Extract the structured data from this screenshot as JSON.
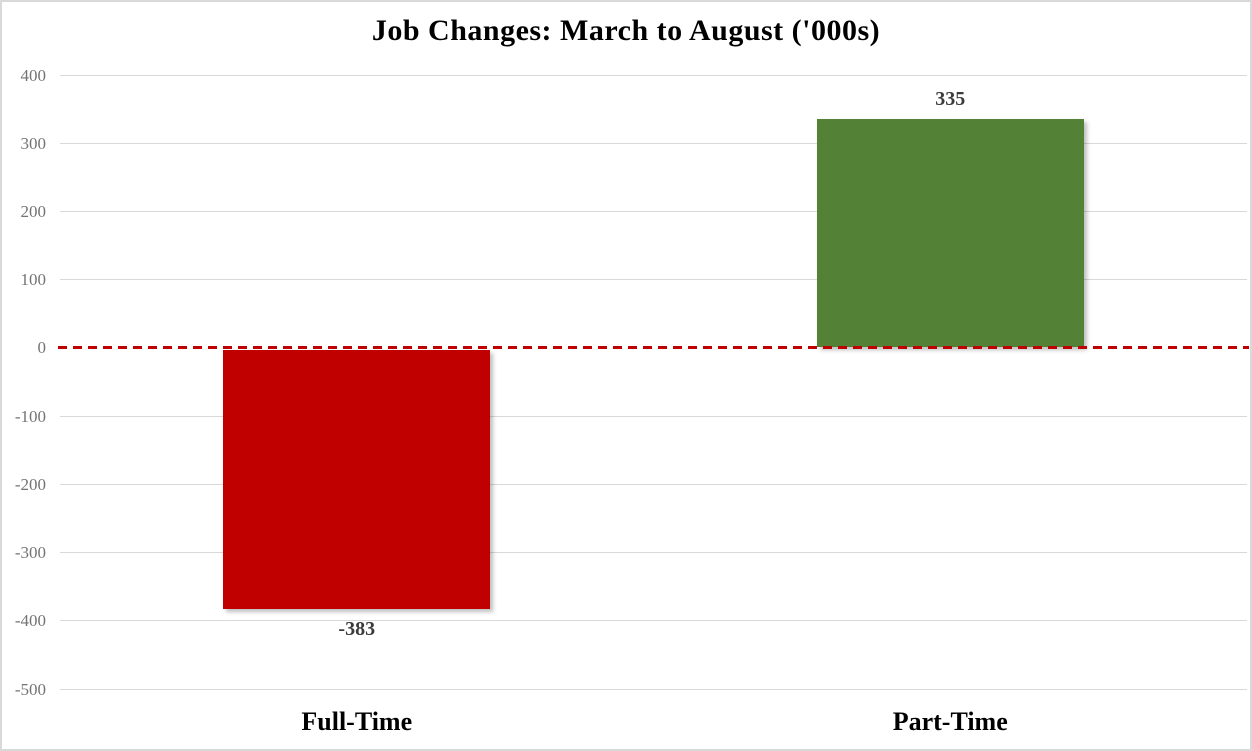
{
  "chart_data": {
    "type": "bar",
    "title": "Job Changes: March to August ('000s)",
    "categories": [
      "Full-Time",
      "Part-Time"
    ],
    "values": [
      -383,
      335
    ],
    "data_labels": [
      "-383",
      "335"
    ],
    "bar_colors": [
      "#c00000",
      "#538135"
    ],
    "y_ticks": [
      400,
      300,
      200,
      100,
      0,
      -100,
      -200,
      -300,
      -400,
      -500
    ],
    "ylim": [
      -500,
      400
    ],
    "xlabel": "",
    "ylabel": "",
    "grid": true,
    "legend": "none",
    "zero_line": {
      "style": "dashed",
      "color": "#c00000"
    }
  },
  "colors": {
    "background": "#ffffff",
    "border": "#d9d9d9",
    "gridline": "#d9d9d9",
    "tick_label": "#737373",
    "data_label": "#3a3a3a",
    "negative_bar": "#c00000",
    "positive_bar": "#538135",
    "zero_line": "#c00000"
  }
}
